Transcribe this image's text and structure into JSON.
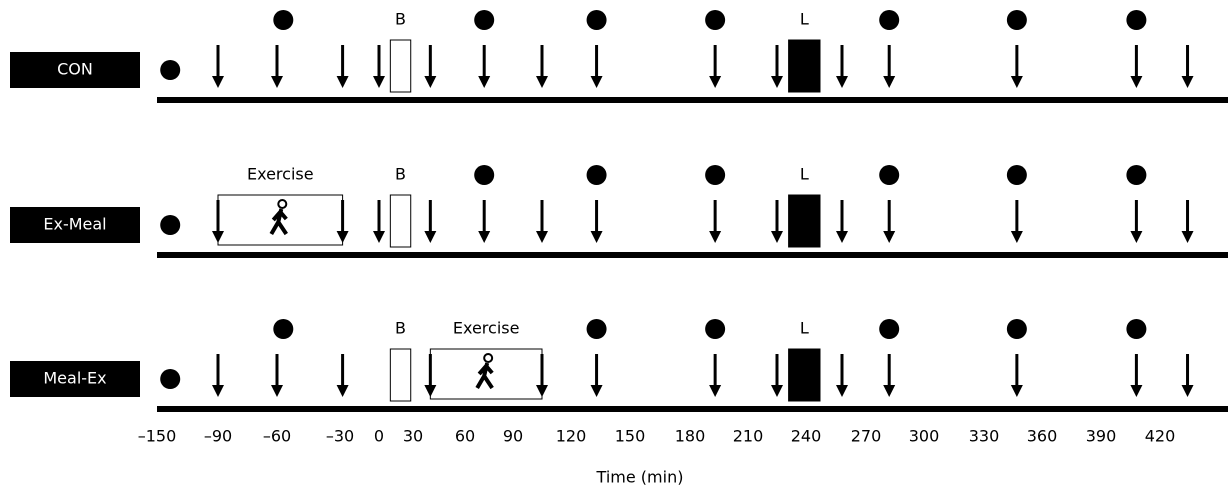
{
  "axis": {
    "label": "Time (min)",
    "ticks": [
      {
        "value": -150,
        "label": "–150"
      },
      {
        "value": -90,
        "label": "–90"
      },
      {
        "value": -60,
        "label": "–60"
      },
      {
        "value": -30,
        "label": "–30"
      },
      0,
      30,
      60,
      90,
      120,
      150,
      180,
      210,
      240,
      270,
      300,
      330,
      360,
      390,
      420
    ]
  },
  "rows": [
    {
      "label": "CON",
      "start_dot": -137,
      "dots": [
        -57,
        72,
        133,
        193,
        282,
        347,
        408
      ],
      "arrows": [
        -90,
        -60,
        -28,
        0,
        40,
        72,
        105,
        133,
        193,
        225,
        258,
        282,
        347,
        408,
        434
      ],
      "meals": [
        {
          "label": "B",
          "start": 10,
          "end": 28,
          "filled": false
        },
        {
          "label": "L",
          "start": 231,
          "end": 247,
          "filled": true
        }
      ]
    },
    {
      "label": "Ex-Meal",
      "start_dot": -137,
      "dots": [
        72,
        133,
        193,
        282,
        347,
        408
      ],
      "arrows": [
        -90,
        -28,
        0,
        40,
        72,
        105,
        133,
        193,
        225,
        258,
        282,
        347,
        408,
        434
      ],
      "meals": [
        {
          "label": "B",
          "start": 10,
          "end": 28,
          "filled": false
        },
        {
          "label": "L",
          "start": 231,
          "end": 247,
          "filled": true
        }
      ],
      "exercise": {
        "label": "Exercise",
        "start": -90,
        "end": -28
      }
    },
    {
      "label": "Meal-Ex",
      "start_dot": -137,
      "dots": [
        -57,
        133,
        193,
        282,
        347,
        408
      ],
      "arrows": [
        -90,
        -60,
        -28,
        40,
        105,
        133,
        193,
        225,
        258,
        282,
        347,
        408,
        434
      ],
      "meals": [
        {
          "label": "B",
          "start": 10,
          "end": 28,
          "filled": false
        },
        {
          "label": "L",
          "start": 231,
          "end": 247,
          "filled": true
        }
      ],
      "exercise": {
        "label": "Exercise",
        "start": 40,
        "end": 105
      }
    }
  ]
}
